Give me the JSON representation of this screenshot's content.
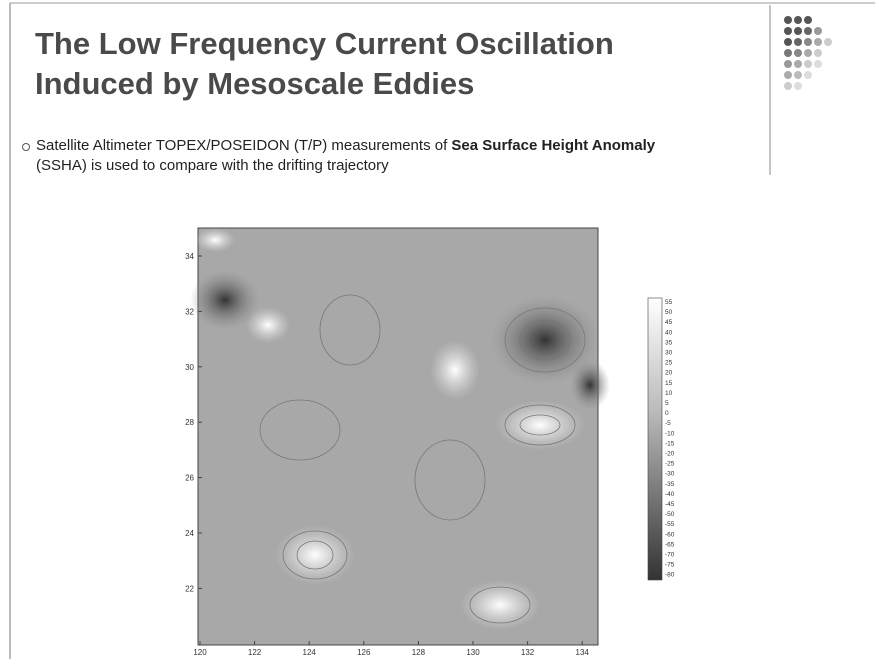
{
  "slide": {
    "title": [
      "The Low Frequency Current Oscillation",
      "Induced by Mesoscale Eddies"
    ],
    "bullet": {
      "before": "Satellite Altimeter TOPEX/POSEIDON (T/P) measurements of ",
      "bold": "Sea Surface Height Anomaly",
      "after": " (SSHA) is used to compare with the drifting trajectory"
    },
    "figure": {
      "xticks": [
        "120",
        "122",
        "124",
        "126",
        "128",
        "130",
        "132",
        "134"
      ],
      "yticks": [
        "34",
        "32",
        "30",
        "28",
        "26",
        "24",
        "22"
      ],
      "colorbar": [
        "55",
        "50",
        "45",
        "40",
        "35",
        "30",
        "25",
        "20",
        "15",
        "10",
        "5",
        "0",
        "-5",
        "-10",
        "-15",
        "-20",
        "-25",
        "-30",
        "-35",
        "-40",
        "-45",
        "-50",
        "-55",
        "-60",
        "-65",
        "-70",
        "-75",
        "-80"
      ]
    }
  }
}
